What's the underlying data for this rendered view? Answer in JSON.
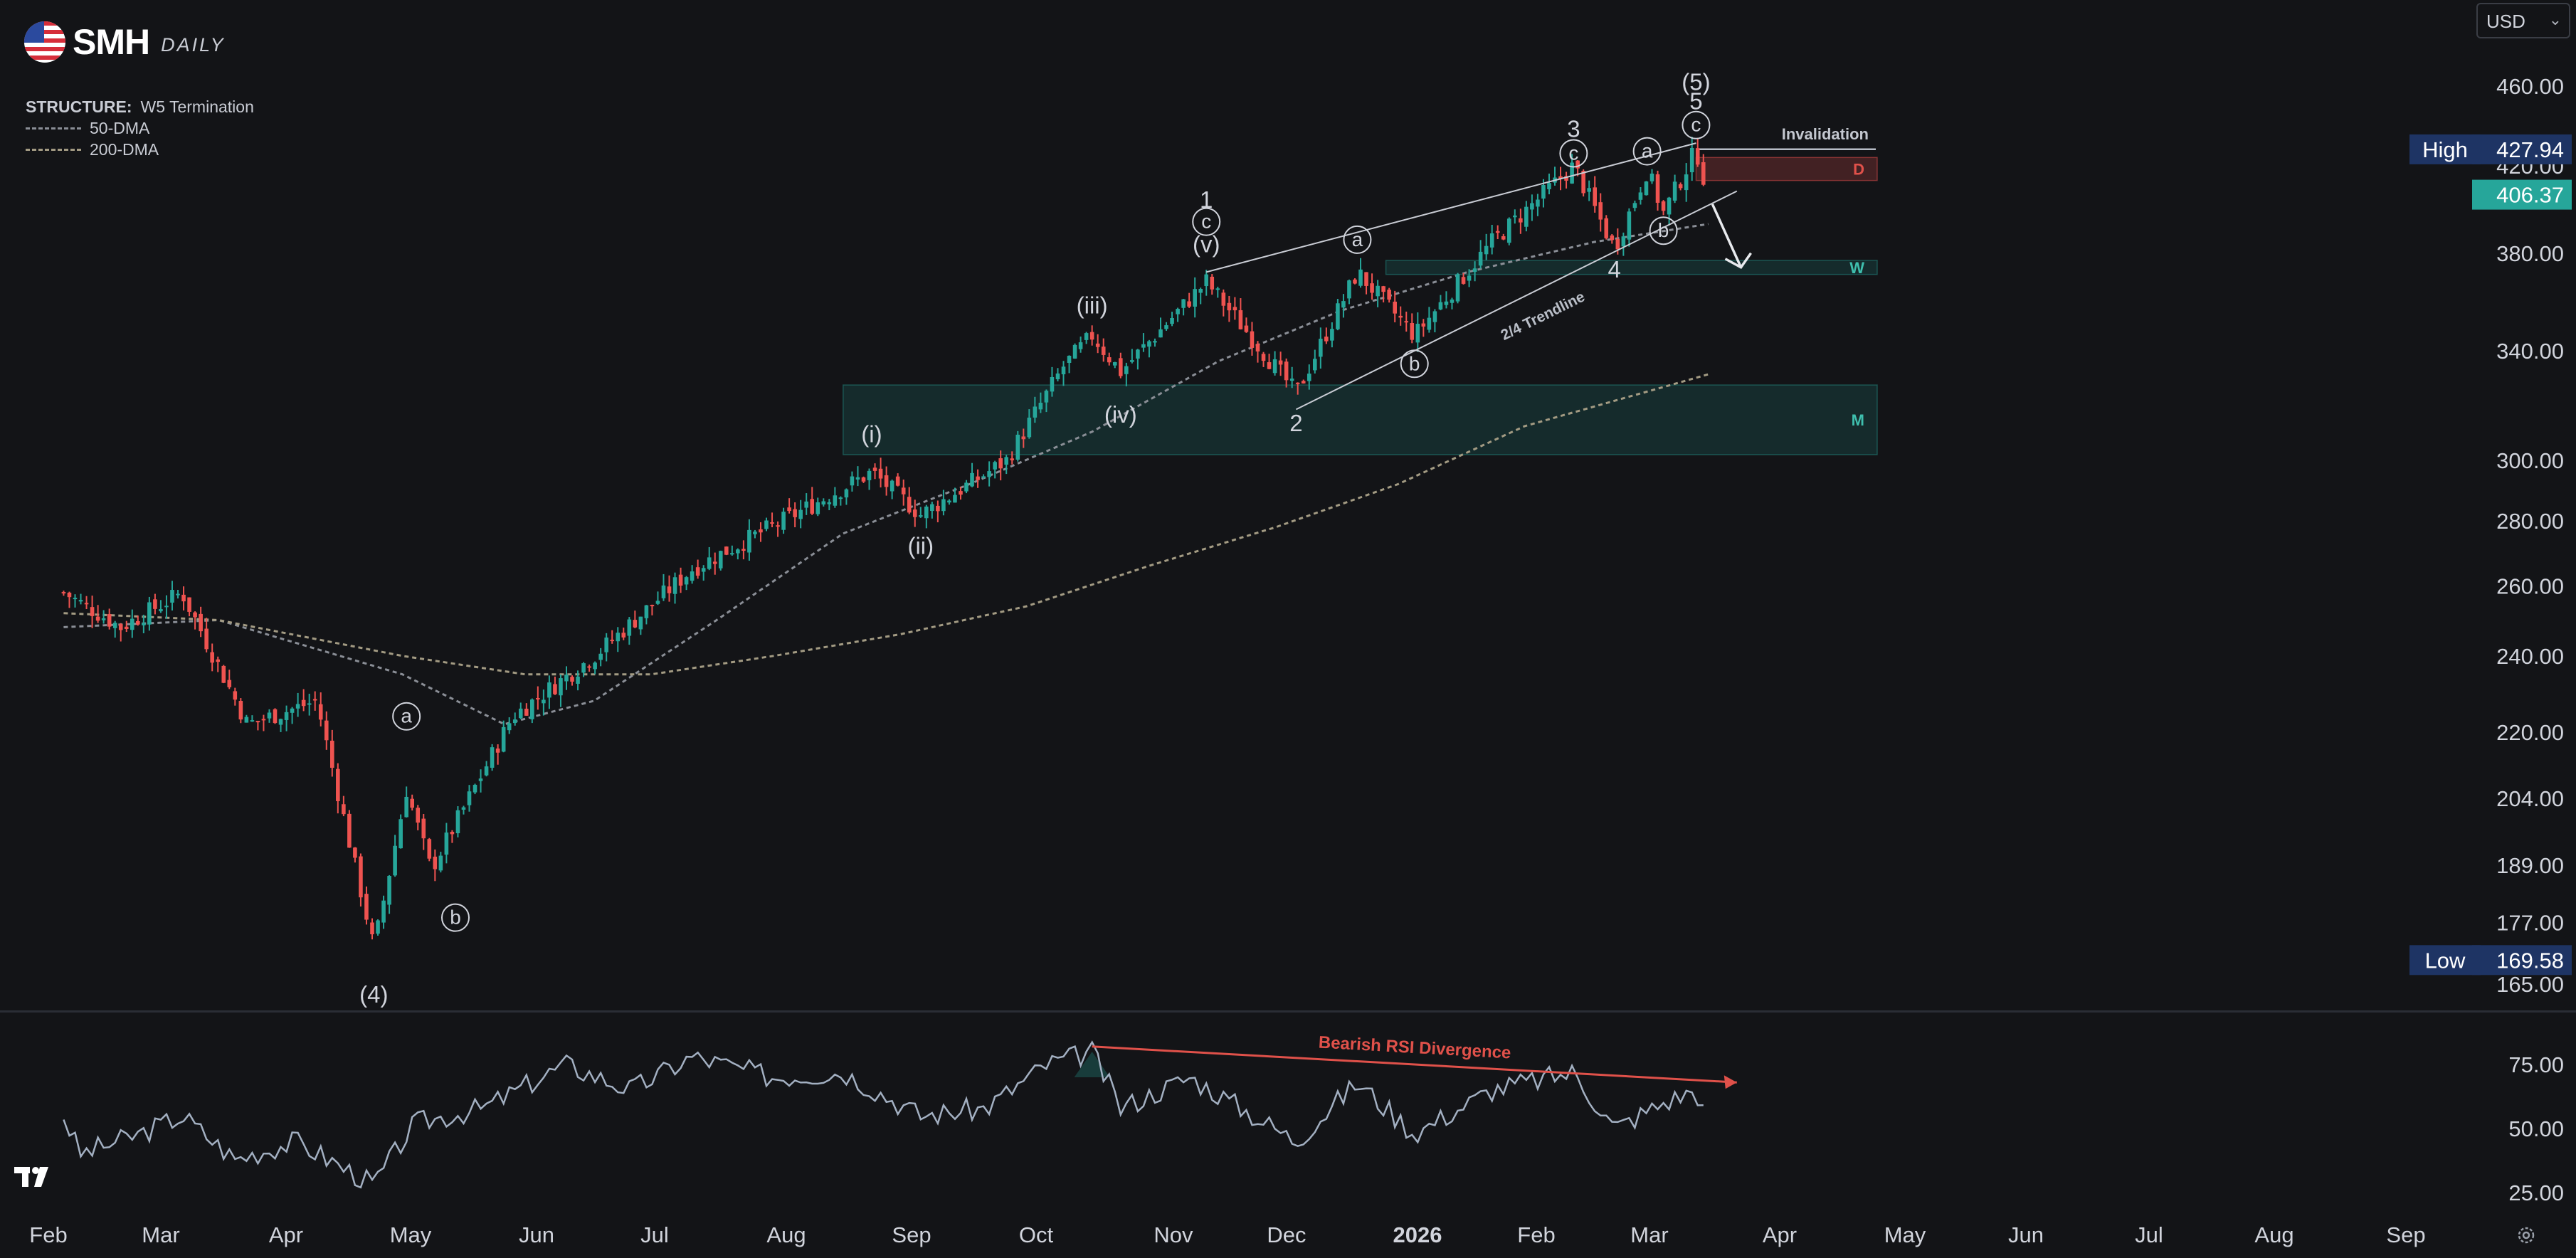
{
  "header": {
    "ticker": "SMH",
    "timeframe": "DAILY",
    "currency": "USD",
    "structure_key": "STRUCTURE:",
    "structure_value": "W5 Termination",
    "legend": [
      "50-DMA",
      "200-DMA"
    ],
    "logo_icon": "us-flag-icon"
  },
  "badges": {
    "high_label": "High",
    "high_value": "427.94",
    "low_label": "Low",
    "low_value": "169.58",
    "last_value": "406.37"
  },
  "zones": {
    "invalidation": "Invalidation",
    "d": "D",
    "w": "W",
    "m": "M"
  },
  "annotations": {
    "trendline": "2/4 Trendline",
    "divergence": "Bearish RSI Divergence",
    "year_label": "2026"
  },
  "colors": {
    "up": "#26a69a",
    "down": "#ef5350",
    "background": "#131417",
    "axis_text": "#d1d4dc",
    "high_badge": "#1e3464",
    "last_badge": "#26a69a",
    "zone_green": "#26a69a",
    "zone_red": "#ef5350",
    "rsi_line": "#a3b0c2",
    "divergence": "#e0514a"
  },
  "chart_data": [
    {
      "type": "candlestick",
      "title": "SMH DAILY",
      "y_scale": "log",
      "y_ticks": [
        "460.00",
        "420.00",
        "380.00",
        "340.00",
        "300.00",
        "280.00",
        "260.00",
        "240.00",
        "220.00",
        "204.00",
        "189.00",
        "177.00",
        "165.00"
      ],
      "x_ticks": [
        "Feb",
        "Mar",
        "Apr",
        "May",
        "Jun",
        "Jul",
        "Aug",
        "Sep",
        "Oct",
        "Nov",
        "Dec",
        "2026",
        "Feb",
        "Mar",
        "Apr",
        "May",
        "Jun",
        "Jul",
        "Aug",
        "Sep"
      ],
      "high": 427.94,
      "low": 169.58,
      "last": 406.37,
      "price_path": [
        [
          "2025-01-22",
          258
        ],
        [
          "2025-02-05",
          248
        ],
        [
          "2025-02-20",
          258
        ],
        [
          "2025-03-08",
          222
        ],
        [
          "2025-03-25",
          228
        ],
        [
          "2025-04-08",
          172
        ],
        [
          "2025-04-16",
          206
        ],
        [
          "2025-04-22",
          188
        ],
        [
          "2025-05-12",
          224
        ],
        [
          "2025-06-01",
          240
        ],
        [
          "2025-06-25",
          265
        ],
        [
          "2025-07-20",
          282
        ],
        [
          "2025-08-08",
          296
        ],
        [
          "2025-08-20",
          282
        ],
        [
          "2025-09-10",
          300
        ],
        [
          "2025-09-24",
          334
        ],
        [
          "2025-10-01",
          346
        ],
        [
          "2025-10-08",
          332
        ],
        [
          "2025-10-29",
          368
        ],
        [
          "2025-11-20",
          324
        ],
        [
          "2025-12-05",
          372
        ],
        [
          "2025-12-19",
          346
        ],
        [
          "2026-01-07",
          385
        ],
        [
          "2026-01-27",
          420
        ],
        [
          "2026-02-06",
          382
        ],
        [
          "2026-02-14",
          418
        ],
        [
          "2026-02-18",
          398
        ],
        [
          "2026-02-26",
          427.94
        ],
        [
          "2026-03-01",
          406.37
        ]
      ],
      "ma50_path": [
        [
          "2025-01-22",
          248
        ],
        [
          "2025-03-01",
          250
        ],
        [
          "2025-04-15",
          235
        ],
        [
          "2025-05-10",
          222
        ],
        [
          "2025-06-01",
          228
        ],
        [
          "2025-07-01",
          250
        ],
        [
          "2025-08-01",
          276
        ],
        [
          "2025-09-01",
          292
        ],
        [
          "2025-10-01",
          310
        ],
        [
          "2025-11-01",
          336
        ],
        [
          "2025-12-01",
          356
        ],
        [
          "2026-01-01",
          372
        ],
        [
          "2026-02-01",
          385
        ],
        [
          "2026-03-01",
          393
        ]
      ],
      "ma200_path": [
        [
          "2025-01-22",
          252
        ],
        [
          "2025-03-01",
          250
        ],
        [
          "2025-04-15",
          240
        ],
        [
          "2025-05-15",
          235
        ],
        [
          "2025-06-15",
          235
        ],
        [
          "2025-07-15",
          240
        ],
        [
          "2025-08-15",
          246
        ],
        [
          "2025-09-15",
          254
        ],
        [
          "2025-10-15",
          266
        ],
        [
          "2025-11-15",
          278
        ],
        [
          "2025-12-15",
          292
        ],
        [
          "2026-01-15",
          312
        ],
        [
          "2026-03-01",
          331
        ]
      ],
      "zones": [
        {
          "label": "D",
          "from": "2026-02-26",
          "to": "2026-06-20",
          "y": [
            413,
            424
          ],
          "color": "red"
        },
        {
          "label": "W",
          "from": "2025-12-12",
          "to": "2026-06-20",
          "y": [
            371,
            377
          ],
          "color": "green"
        },
        {
          "label": "M",
          "from": "2025-08-01",
          "to": "2026-06-20",
          "y": [
            302,
            327
          ],
          "color": "green"
        }
      ],
      "invalidation_level": 428,
      "wave_labels": [
        {
          "text": "(4)",
          "date": "2025-04-08",
          "price": 163,
          "circled": false
        },
        {
          "text": "a",
          "date": "2025-04-16",
          "price": 224,
          "circled": true
        },
        {
          "text": "b",
          "date": "2025-04-28",
          "price": 178,
          "circled": true
        },
        {
          "text": "(i)",
          "date": "2025-08-08",
          "price": 309,
          "circled": false
        },
        {
          "text": "(ii)",
          "date": "2025-08-20",
          "price": 272,
          "circled": false
        },
        {
          "text": "(iii)",
          "date": "2025-10-01",
          "price": 358,
          "circled": false
        },
        {
          "text": "(iv)",
          "date": "2025-10-08",
          "price": 316,
          "circled": false
        },
        {
          "text": "(v)",
          "date": "2025-10-29",
          "price": 384,
          "circled": false
        },
        {
          "text": "c",
          "date": "2025-10-29",
          "price": 394,
          "circled": true
        },
        {
          "text": "1",
          "date": "2025-10-29",
          "price": 404,
          "circled": false
        },
        {
          "text": "2",
          "date": "2025-11-20",
          "price": 313,
          "circled": false
        },
        {
          "text": "a",
          "date": "2025-12-05",
          "price": 386,
          "circled": true
        },
        {
          "text": "b",
          "date": "2025-12-19",
          "price": 335,
          "circled": true
        },
        {
          "text": "4",
          "date": "2026-02-06",
          "price": 373,
          "circled": false
        },
        {
          "text": "c",
          "date": "2026-01-27",
          "price": 426,
          "circled": true
        },
        {
          "text": "3",
          "date": "2026-01-27",
          "price": 438,
          "circled": false
        },
        {
          "text": "a",
          "date": "2026-02-14",
          "price": 427,
          "circled": true
        },
        {
          "text": "b",
          "date": "2026-02-18",
          "price": 390,
          "circled": true
        },
        {
          "text": "c",
          "date": "2026-02-26",
          "price": 440,
          "circled": true
        },
        {
          "text": "5",
          "date": "2026-02-26",
          "price": 452,
          "circled": false
        },
        {
          "text": "(5)",
          "date": "2026-02-26",
          "price": 462,
          "circled": false
        }
      ],
      "trendlines": [
        {
          "name": "upper",
          "from": [
            "2025-10-29",
            372
          ],
          "to": [
            "2026-02-26",
            431
          ]
        },
        {
          "name": "2/4 Trendline",
          "from": [
            "2025-11-20",
            318
          ],
          "to": [
            "2026-03-08",
            408
          ]
        }
      ],
      "projection_arrow": {
        "from": [
          "2026-03-02",
          402
        ],
        "to": [
          "2026-03-09",
          374
        ]
      }
    },
    {
      "type": "line",
      "title": "RSI",
      "y_ticks": [
        "75.00",
        "50.00",
        "25.00"
      ],
      "ylim": [
        20,
        90
      ],
      "rsi_path": [
        [
          "2025-01-22",
          55
        ],
        [
          "2025-01-26",
          40
        ],
        [
          "2025-02-10",
          48
        ],
        [
          "2025-02-20",
          55
        ],
        [
          "2025-03-05",
          38
        ],
        [
          "2025-03-20",
          45
        ],
        [
          "2025-04-08",
          28
        ],
        [
          "2025-04-18",
          52
        ],
        [
          "2025-05-05",
          58
        ],
        [
          "2025-05-25",
          75
        ],
        [
          "2025-06-10",
          65
        ],
        [
          "2025-06-25",
          78
        ],
        [
          "2025-07-15",
          70
        ],
        [
          "2025-08-01",
          72
        ],
        [
          "2025-08-20",
          55
        ],
        [
          "2025-09-05",
          58
        ],
        [
          "2025-09-20",
          75
        ],
        [
          "2025-10-01",
          80
        ],
        [
          "2025-10-08",
          58
        ],
        [
          "2025-10-25",
          70
        ],
        [
          "2025-11-20",
          45
        ],
        [
          "2025-12-05",
          68
        ],
        [
          "2025-12-19",
          48
        ],
        [
          "2026-01-07",
          65
        ],
        [
          "2026-01-27",
          72
        ],
        [
          "2026-02-06",
          50
        ],
        [
          "2026-02-18",
          60
        ],
        [
          "2026-02-26",
          65
        ],
        [
          "2026-03-01",
          52
        ]
      ],
      "divergence_line": {
        "label": "Bearish RSI Divergence",
        "from": [
          "2025-10-01",
          82
        ],
        "to": [
          "2026-03-08",
          68
        ]
      }
    }
  ]
}
